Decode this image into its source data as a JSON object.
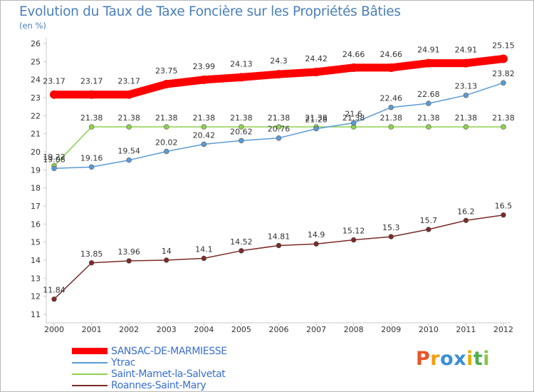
{
  "header": {
    "title": "Evolution du Taux de Taxe Foncière sur les Propriétés Bâties",
    "unit": "(en %)"
  },
  "logo": {
    "text": "Proxiti",
    "letters": [
      "P",
      "r",
      "o",
      "x",
      "i",
      "t",
      "i"
    ],
    "colors": [
      "#e8542a",
      "#f39c12",
      "#3a8fd6",
      "#3a8fd6",
      "#e0b000",
      "#4caf50",
      "#8bc34a"
    ]
  },
  "chart_data": {
    "type": "line",
    "title": "Evolution du Taux de Taxe Foncière sur les Propriétés Bâties",
    "ylabel": "(en %)",
    "x": [
      "2000",
      "2001",
      "2002",
      "2003",
      "2004",
      "2005",
      "2006",
      "2007",
      "2008",
      "2009",
      "2010",
      "2011",
      "2012"
    ],
    "yticks": [
      11,
      12,
      13,
      14,
      15,
      16,
      17,
      18,
      19,
      20,
      21,
      22,
      23,
      24,
      25,
      26
    ],
    "ylim": [
      11,
      26
    ],
    "grid": false,
    "legend_position": "bottom-left",
    "series": [
      {
        "name": "SANSAC-DE-MARMIESSE",
        "color": "#ff0000",
        "emphasis": true,
        "values": [
          23.17,
          23.17,
          23.17,
          23.75,
          23.99,
          24.13,
          24.3,
          24.42,
          24.66,
          24.66,
          24.91,
          24.91,
          25.15
        ],
        "labels": [
          "23.17",
          "23.17",
          "23.17",
          "23.75",
          "23.99",
          "24.13",
          "24.3",
          "24.42",
          "24.66",
          "24.66",
          "24.91",
          "24.91",
          "25.15"
        ]
      },
      {
        "name": "Ytrac",
        "color": "#5b9bd5",
        "emphasis": false,
        "values": [
          19.08,
          19.16,
          19.54,
          20.02,
          20.42,
          20.62,
          20.76,
          21.28,
          21.6,
          22.46,
          22.68,
          23.13,
          23.82
        ],
        "labels": [
          "19.08",
          "19.16",
          "19.54",
          "20.02",
          "20.42",
          "20.62",
          "20.76",
          "21.28",
          "21.6",
          "22.46",
          "22.68",
          "23.13",
          "23.82"
        ]
      },
      {
        "name": "Saint-Mamet-la-Salvetat",
        "color": "#8fd14f",
        "emphasis": false,
        "values": [
          19.22,
          21.38,
          21.38,
          21.38,
          21.38,
          21.38,
          21.38,
          21.38,
          21.38,
          21.38,
          21.38,
          21.38,
          21.38
        ],
        "labels": [
          "19.22",
          "21.38",
          "21.38",
          "21.38",
          "21.38",
          "21.38",
          "21.38",
          "21.38",
          "21.38",
          "21.38",
          "21.38",
          "21.38",
          "21.38"
        ]
      },
      {
        "name": "Roannes-Saint-Mary",
        "color": "#7b2a2a",
        "emphasis": false,
        "values": [
          11.84,
          13.85,
          13.96,
          14,
          14.1,
          14.52,
          14.81,
          14.9,
          15.12,
          15.3,
          15.7,
          16.2,
          16.5
        ],
        "labels": [
          "11.84",
          "13.85",
          "13.96",
          "14",
          "14.1",
          "14.52",
          "14.81",
          "14.9",
          "15.12",
          "15.3",
          "15.7",
          "16.2",
          "16.5"
        ]
      }
    ]
  }
}
